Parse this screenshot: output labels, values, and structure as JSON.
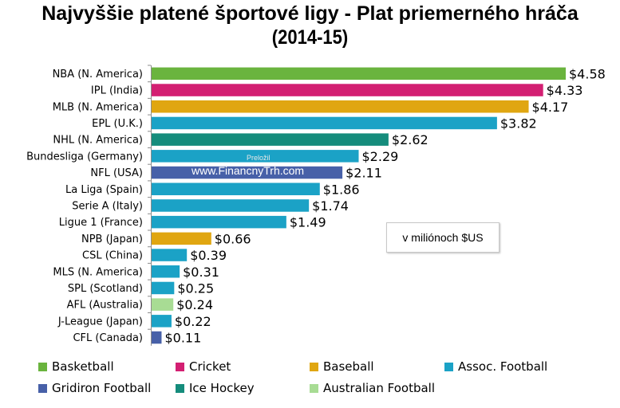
{
  "header": {
    "title": "Najvyššie platené športové ligy - Plat priemerného hráča",
    "subtitle": "(2014-15)"
  },
  "unit_note": "v miliónoch $US",
  "watermark": {
    "line1": "Preložil",
    "line2": "www.FinancnyTrh.com"
  },
  "colors": {
    "Basketball": "#6ab43e",
    "Cricket": "#d31f72",
    "Baseball": "#e0a611",
    "Assoc. Football": "#1ba2c6",
    "Gridiron Football": "#4760a8",
    "Ice Hockey": "#158c7c",
    "Australian Football": "#a8dc94"
  },
  "legend": [
    {
      "label": "Basketball"
    },
    {
      "label": "Cricket"
    },
    {
      "label": "Baseball"
    },
    {
      "label": "Assoc. Football"
    },
    {
      "label": "Gridiron Football"
    },
    {
      "label": "Ice Hockey"
    },
    {
      "label": "Australian Football"
    }
  ],
  "chart_data": {
    "type": "bar",
    "orientation": "horizontal",
    "title": "Najvyššie platené športové ligy - Plat priemerného hráča",
    "subtitle": "(2014-15)",
    "xlim": [
      0,
      4.6
    ],
    "grid": false,
    "legend_position": "bottom",
    "categories": [
      "NBA (N. America)",
      "IPL (India)",
      "MLB (N. America)",
      "EPL (U.K.)",
      "NHL (N. America)",
      "Bundesliga (Germany)",
      "NFL (USA)",
      "La Liga (Spain)",
      "Serie A (Italy)",
      "Ligue 1 (France)",
      "NPB (Japan)",
      "CSL (China)",
      "MLS (N. America)",
      "SPL (Scotland)",
      "AFL (Australia)",
      "J-League (Japan)",
      "CFL (Canada)"
    ],
    "values": [
      4.58,
      4.33,
      4.17,
      3.82,
      2.62,
      2.29,
      2.11,
      1.86,
      1.74,
      1.49,
      0.66,
      0.39,
      0.31,
      0.25,
      0.24,
      0.22,
      0.11
    ],
    "data_labels": [
      "$4.58",
      "$4.33",
      "$4.17",
      "$3.82",
      "$2.62",
      "$2.29",
      "$2.11",
      "$1.86",
      "$1.74",
      "$1.49",
      "$0.66",
      "$0.39",
      "$0.31",
      "$0.25",
      "$0.24",
      "$0.22",
      "$0.11"
    ],
    "sports": [
      "Basketball",
      "Cricket",
      "Baseball",
      "Assoc. Football",
      "Ice Hockey",
      "Assoc. Football",
      "Gridiron Football",
      "Assoc. Football",
      "Assoc. Football",
      "Assoc. Football",
      "Baseball",
      "Assoc. Football",
      "Assoc. Football",
      "Assoc. Football",
      "Australian Football",
      "Assoc. Football",
      "Gridiron Football"
    ]
  }
}
